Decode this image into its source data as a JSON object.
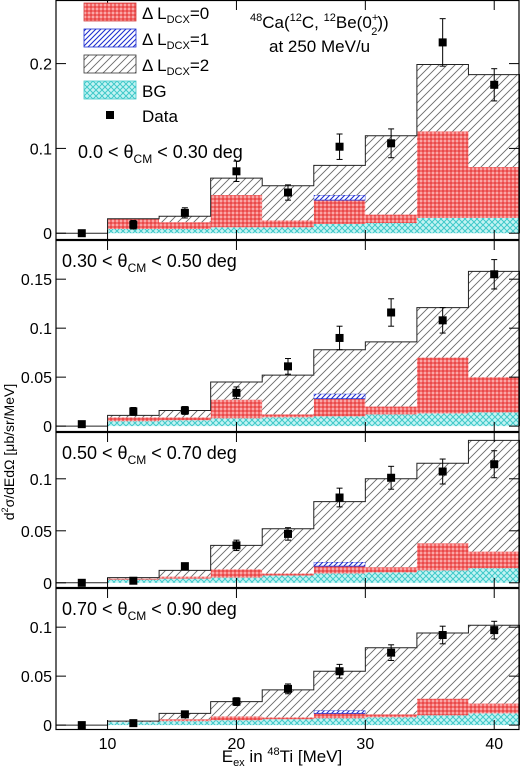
{
  "figure": {
    "reaction": "⁴⁸Ca(¹²C, ¹²Be(0₂⁺))",
    "energy": "at 250 MeV/u",
    "ylabel": "d²σ/dEdΩ [μb/sr/MeV]",
    "xlabel": "Eₑₓ in ⁴⁸Ti [MeV]",
    "legend": [
      "Δ L_DCX=0",
      "Δ L_DCX=1",
      "Δ L_DCX=2",
      "BG",
      "Data"
    ],
    "colors": {
      "L0": "#f05b5b",
      "L1": "#1f2fd0",
      "L2": "#555555",
      "BG": "#3fd6d6",
      "data": "#000000"
    }
  },
  "chart_data": [
    {
      "type": "bar",
      "panel_label": "0.0 < θCM < 0.30 deg",
      "bin_edges": [
        6,
        10,
        14,
        18,
        22,
        26,
        30,
        34,
        38,
        42
      ],
      "stack": {
        "BG": [
          0,
          0.005,
          0.005,
          0.007,
          0.007,
          0.011,
          0.012,
          0.018,
          0.018
        ],
        "L0": [
          0,
          0.012,
          0.008,
          0.038,
          0.008,
          0.028,
          0.01,
          0.102,
          0.06
        ],
        "L1": [
          0,
          0,
          0,
          0,
          0,
          0.006,
          0,
          0,
          0
        ],
        "L2": [
          0,
          0,
          0.007,
          0.02,
          0.041,
          0.035,
          0.093,
          0.079,
          0.109
        ]
      },
      "data_x": [
        8,
        12,
        16,
        20,
        24,
        28,
        32,
        36,
        40
      ],
      "data_y": [
        0.0,
        0.01,
        0.024,
        0.073,
        0.048,
        0.102,
        0.106,
        0.225,
        0.175
      ],
      "data_err": [
        0.003,
        0.005,
        0.006,
        0.012,
        0.009,
        0.015,
        0.017,
        0.028,
        0.019
      ],
      "ylim": [
        -0.008,
        0.275
      ],
      "yticks": [
        0,
        0.1,
        0.2
      ],
      "ytick_labels": [
        "0",
        "0.1",
        "0.2"
      ]
    },
    {
      "type": "bar",
      "panel_label": "0.30 < θCM < 0.50 deg",
      "bin_edges": [
        6,
        10,
        14,
        18,
        22,
        26,
        30,
        34,
        38,
        42
      ],
      "stack": {
        "BG": [
          0,
          0.005,
          0.006,
          0.008,
          0.009,
          0.01,
          0.012,
          0.013,
          0.014
        ],
        "L0": [
          0,
          0.004,
          0.003,
          0.019,
          0.003,
          0.018,
          0.008,
          0.057,
          0.036
        ],
        "L1": [
          0,
          0,
          0,
          0,
          0,
          0.005,
          0,
          0,
          0
        ],
        "L2": [
          0,
          0.002,
          0.007,
          0.018,
          0.04,
          0.045,
          0.066,
          0.051,
          0.108
        ]
      },
      "data_x": [
        8,
        12,
        16,
        20,
        24,
        28,
        32,
        36,
        40
      ],
      "data_y": [
        0.002,
        0.015,
        0.016,
        0.034,
        0.061,
        0.09,
        0.116,
        0.108,
        0.155
      ],
      "data_err": [
        0.002,
        0.004,
        0.004,
        0.006,
        0.008,
        0.012,
        0.014,
        0.013,
        0.015
      ],
      "ylim": [
        -0.006,
        0.19
      ],
      "yticks": [
        0,
        0.05,
        0.1,
        0.15
      ],
      "ytick_labels": [
        "0",
        "0.05",
        "0.1",
        "0.15"
      ]
    },
    {
      "type": "bar",
      "panel_label": "0.50 < θCM < 0.70 deg",
      "bin_edges": [
        6,
        10,
        14,
        18,
        22,
        26,
        30,
        34,
        38,
        42
      ],
      "stack": {
        "BG": [
          0,
          0.003,
          0.004,
          0.005,
          0.007,
          0.009,
          0.01,
          0.012,
          0.014
        ],
        "L0": [
          0,
          0.001,
          0.002,
          0.008,
          0.002,
          0.007,
          0.005,
          0.026,
          0.016
        ],
        "L1": [
          0,
          0,
          0,
          0,
          0,
          0.004,
          0,
          0,
          0
        ],
        "L2": [
          0,
          0.001,
          0.006,
          0.023,
          0.043,
          0.058,
          0.085,
          0.077,
          0.107
        ]
      },
      "data_x": [
        8,
        12,
        16,
        20,
        24,
        28,
        32,
        36,
        40
      ],
      "data_y": [
        0.0,
        0.002,
        0.016,
        0.036,
        0.047,
        0.082,
        0.101,
        0.107,
        0.114
      ],
      "data_err": [
        0.001,
        0.002,
        0.003,
        0.005,
        0.006,
        0.009,
        0.011,
        0.012,
        0.013
      ],
      "ylim": [
        -0.005,
        0.145
      ],
      "yticks": [
        0,
        0.05,
        0.1
      ],
      "ytick_labels": [
        "0",
        "0.05",
        "0.1"
      ]
    },
    {
      "type": "bar",
      "panel_label": "0.70 < θCM < 0.90 deg",
      "bin_edges": [
        6,
        10,
        14,
        18,
        22,
        26,
        30,
        34,
        38,
        42
      ],
      "stack": {
        "BG": [
          0,
          0.003,
          0.004,
          0.005,
          0.006,
          0.007,
          0.008,
          0.01,
          0.012
        ],
        "L0": [
          0,
          0,
          0.002,
          0.004,
          0.002,
          0.005,
          0.003,
          0.017,
          0.01
        ],
        "L1": [
          0,
          0,
          0,
          0,
          0,
          0.003,
          0,
          0,
          0
        ],
        "L2": [
          0,
          0.001,
          0.006,
          0.015,
          0.028,
          0.04,
          0.068,
          0.067,
          0.08
        ]
      },
      "data_x": [
        8,
        12,
        16,
        20,
        24,
        28,
        32,
        36,
        40
      ],
      "data_y": [
        0.0,
        0.002,
        0.011,
        0.024,
        0.037,
        0.055,
        0.074,
        0.092,
        0.097
      ],
      "data_err": [
        0.001,
        0.002,
        0.003,
        0.004,
        0.005,
        0.007,
        0.008,
        0.009,
        0.009
      ],
      "ylim": [
        -0.005,
        0.14
      ],
      "yticks": [
        0,
        0.05,
        0.1
      ],
      "ytick_labels": [
        "0",
        "0.05",
        "0.1"
      ]
    }
  ],
  "x_axis": {
    "range": [
      6,
      42
    ],
    "ticks": [
      10,
      20,
      30,
      40
    ],
    "tick_labels": [
      "10",
      "20",
      "30",
      "40"
    ]
  }
}
